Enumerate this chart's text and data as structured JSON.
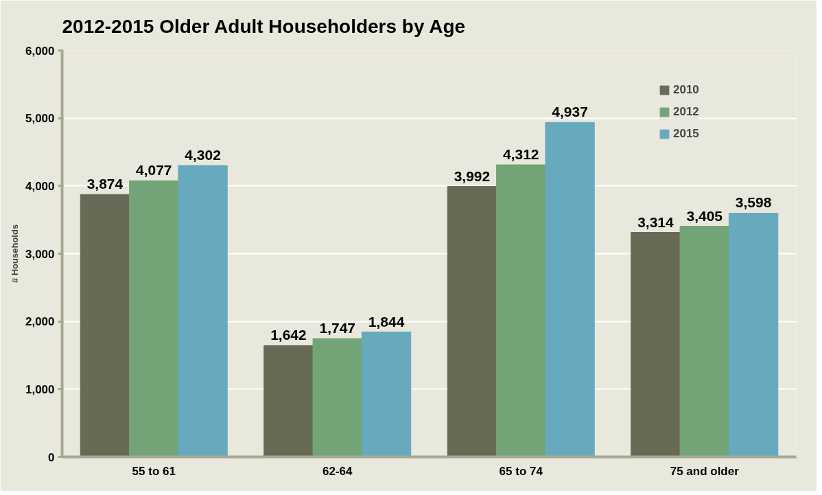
{
  "chart_data": {
    "type": "bar",
    "title": "2012-2015 Older Adult Householders by Age",
    "ylabel": "# Households",
    "categories": [
      "55 to 61",
      "62-64",
      "65 to 74",
      "75 and older"
    ],
    "series": [
      {
        "name": "2010",
        "color": "#666b55",
        "values": [
          3874,
          1642,
          3992,
          3314
        ],
        "value_labels": [
          "3,874",
          "1,642",
          "3,992",
          "3,314"
        ]
      },
      {
        "name": "2012",
        "color": "#72a478",
        "values": [
          4077,
          1747,
          4312,
          3405
        ],
        "value_labels": [
          "4,077",
          "1,747",
          "4,312",
          "3,405"
        ]
      },
      {
        "name": "2015",
        "color": "#67a9bd",
        "values": [
          4302,
          1844,
          4937,
          3598
        ],
        "value_labels": [
          "4,302",
          "1,844",
          "4,937",
          "3,598"
        ]
      }
    ],
    "ylim": [
      0,
      6000
    ],
    "yticks": [
      {
        "value": 0,
        "label": "0"
      },
      {
        "value": 1000,
        "label": "1,000"
      },
      {
        "value": 2000,
        "label": "2,000"
      },
      {
        "value": 3000,
        "label": "3,000"
      },
      {
        "value": 4000,
        "label": "4,000"
      },
      {
        "value": 5000,
        "label": "5,000"
      },
      {
        "value": 6000,
        "label": "6,000"
      }
    ],
    "grid": "y",
    "legend": "top right"
  }
}
